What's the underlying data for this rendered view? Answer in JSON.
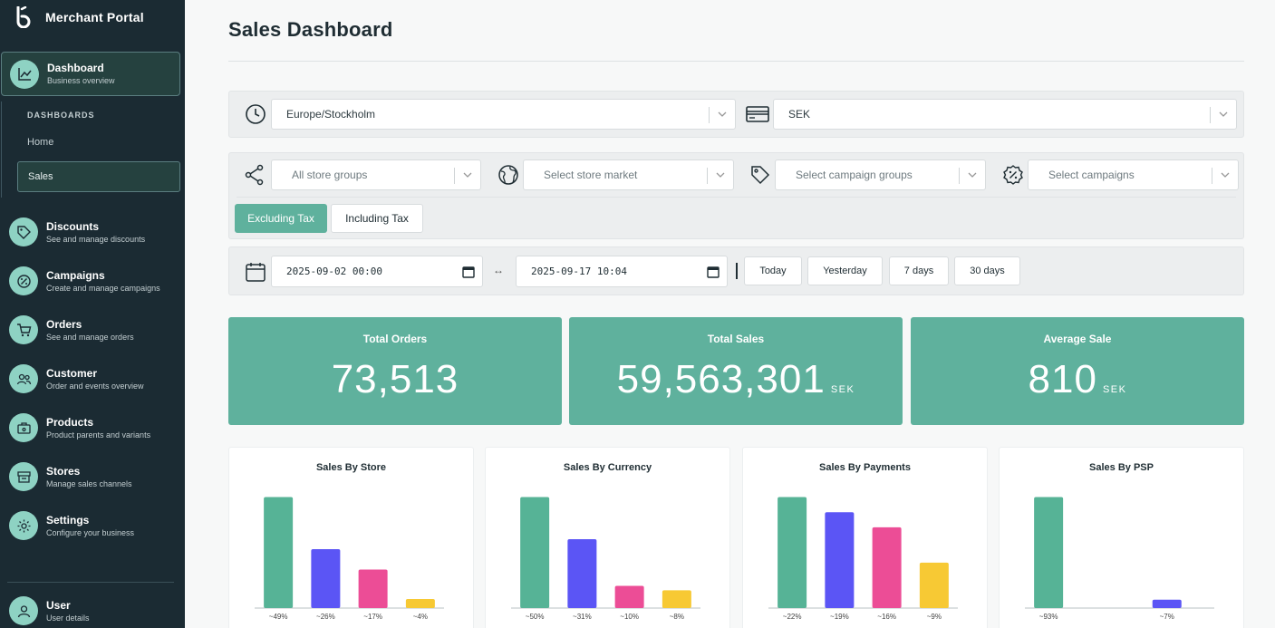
{
  "app": {
    "title": "Merchant Portal"
  },
  "sidebar": {
    "dashboard": {
      "label": "Dashboard",
      "sub": "Business overview"
    },
    "dashboards_heading": "DASHBOARDS",
    "subitems": [
      "Home",
      "Sales"
    ],
    "items": [
      {
        "label": "Discounts",
        "sub": "See and manage discounts",
        "icon": "tag-icon"
      },
      {
        "label": "Campaigns",
        "sub": "Create and manage campaigns",
        "icon": "percent-badge-icon"
      },
      {
        "label": "Orders",
        "sub": "See and manage orders",
        "icon": "cart-icon"
      },
      {
        "label": "Customer",
        "sub": "Order and events overview",
        "icon": "users-icon"
      },
      {
        "label": "Products",
        "sub": "Product parents and variants",
        "icon": "box-icon"
      },
      {
        "label": "Stores",
        "sub": "Manage sales channels",
        "icon": "store-icon"
      },
      {
        "label": "Settings",
        "sub": "Configure your business",
        "icon": "gear-icon"
      }
    ],
    "user": {
      "label": "User",
      "sub": "User details"
    }
  },
  "page": {
    "title": "Sales Dashboard"
  },
  "filters": {
    "timezone": "Europe/Stockholm",
    "currency": "SEK",
    "store_groups_placeholder": "All store groups",
    "store_market_placeholder": "Select store market",
    "campaign_groups_placeholder": "Select campaign groups",
    "campaigns_placeholder": "Select campaigns",
    "excluding_tax": "Excluding Tax",
    "including_tax": "Including Tax",
    "date_from": "2025-09-02 00:00",
    "date_to": "2025-09-17 10:04",
    "arrow": "↔",
    "ranges": [
      "Today",
      "Yesterday",
      "7 days",
      "30 days"
    ]
  },
  "kpis": [
    {
      "label": "Total Orders",
      "value": "73,513",
      "unit": ""
    },
    {
      "label": "Total Sales",
      "value": "59,563,301",
      "unit": "SEK"
    },
    {
      "label": "Average Sale",
      "value": "810",
      "unit": "SEK"
    }
  ],
  "colors": {
    "accent": "#5fb19d",
    "sidebar": "#1b2b33",
    "green": "#56b396",
    "purple": "#5b55f5",
    "pink": "#ec4d96",
    "yellow": "#f7c934"
  },
  "chart_data": [
    {
      "type": "bar",
      "title": "Sales By Store",
      "categories": [
        "~49%",
        "~26%",
        "~17%",
        "~4%"
      ],
      "values": [
        49,
        26,
        17,
        4
      ],
      "colors": [
        "#56b396",
        "#5b55f5",
        "#ec4d96",
        "#f7c934"
      ]
    },
    {
      "type": "bar",
      "title": "Sales By Currency",
      "categories": [
        "~50%",
        "~31%",
        "~10%",
        "~8%"
      ],
      "values": [
        50,
        31,
        10,
        8
      ],
      "colors": [
        "#56b396",
        "#5b55f5",
        "#ec4d96",
        "#f7c934"
      ]
    },
    {
      "type": "bar",
      "title": "Sales By Payments",
      "categories": [
        "~22%",
        "~19%",
        "~16%",
        "~9%"
      ],
      "values": [
        22,
        19,
        16,
        9
      ],
      "colors": [
        "#56b396",
        "#5b55f5",
        "#ec4d96",
        "#f7c934"
      ]
    },
    {
      "type": "bar",
      "title": "Sales By PSP",
      "categories": [
        "~93%",
        "~7%"
      ],
      "values": [
        93,
        7
      ],
      "colors": [
        "#56b396",
        "#5b55f5"
      ]
    }
  ]
}
